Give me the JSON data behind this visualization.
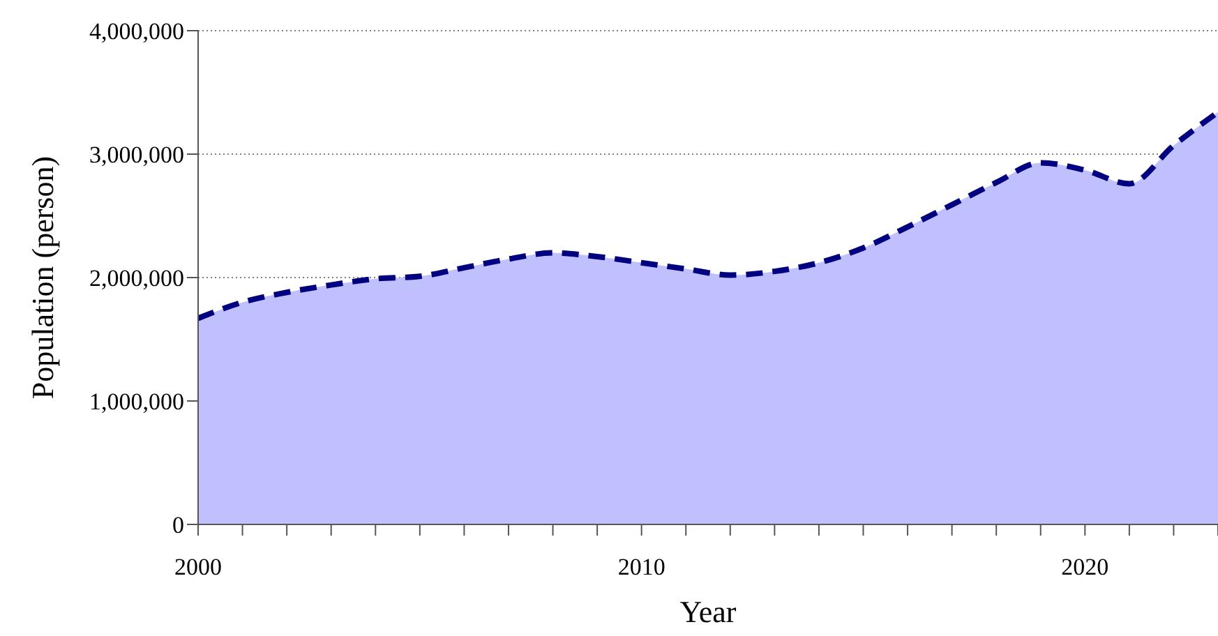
{
  "chart_data": {
    "type": "area",
    "xlabel": "Year",
    "ylabel": "Population (person)",
    "x": [
      2000,
      2001,
      2002,
      2003,
      2004,
      2005,
      2006,
      2007,
      2008,
      2009,
      2010,
      2011,
      2012,
      2013,
      2014,
      2015,
      2016,
      2017,
      2018,
      2019,
      2020,
      2021,
      2022,
      2023
    ],
    "series": [
      {
        "color": "#c0c0ff",
        "values": [
          1670000,
          1800000,
          1880000,
          1940000,
          1990000,
          2010000,
          2080000,
          2150000,
          2200000,
          2170000,
          2120000,
          2070000,
          2020000,
          2050000,
          2120000,
          2240000,
          2410000,
          2590000,
          2770000,
          2930000,
          2870000,
          2760000,
          3070000,
          3340000
        ]
      }
    ],
    "xlim": [
      2000,
      2023
    ],
    "xticks": [
      2000,
      {
        "value": 2001,
        "label": null
      },
      {
        "value": 2002,
        "label": null
      },
      {
        "value": 2003,
        "label": null
      },
      {
        "value": 2004,
        "label": null
      },
      {
        "value": 2005,
        "label": null
      },
      {
        "value": 2006,
        "label": null
      },
      {
        "value": 2007,
        "label": null
      },
      {
        "value": 2008,
        "label": null
      },
      {
        "value": 2009,
        "label": null
      },
      2010,
      {
        "value": 2011,
        "label": null
      },
      {
        "value": 2012,
        "label": null
      },
      {
        "value": 2013,
        "label": null
      },
      {
        "value": 2014,
        "label": null
      },
      {
        "value": 2015,
        "label": null
      },
      {
        "value": 2016,
        "label": null
      },
      {
        "value": 2017,
        "label": null
      },
      {
        "value": 2018,
        "label": null
      },
      {
        "value": 2019,
        "label": null
      },
      2020,
      {
        "value": 2021,
        "label": null
      },
      {
        "value": 2022,
        "label": null
      },
      {
        "value": 2023,
        "label": null
      }
    ],
    "ylim": [
      0,
      4000000
    ],
    "yticks": [
      0,
      {
        "value": 1000000,
        "label": "1,000,000"
      },
      {
        "value": 2000000,
        "label": "2,000,000"
      },
      {
        "value": 3000000,
        "label": "3,000,000"
      },
      {
        "value": 4000000,
        "label": "4,000,000"
      }
    ],
    "grid": "y",
    "line_style": "dashed",
    "marker": "none",
    "legend": false
  }
}
